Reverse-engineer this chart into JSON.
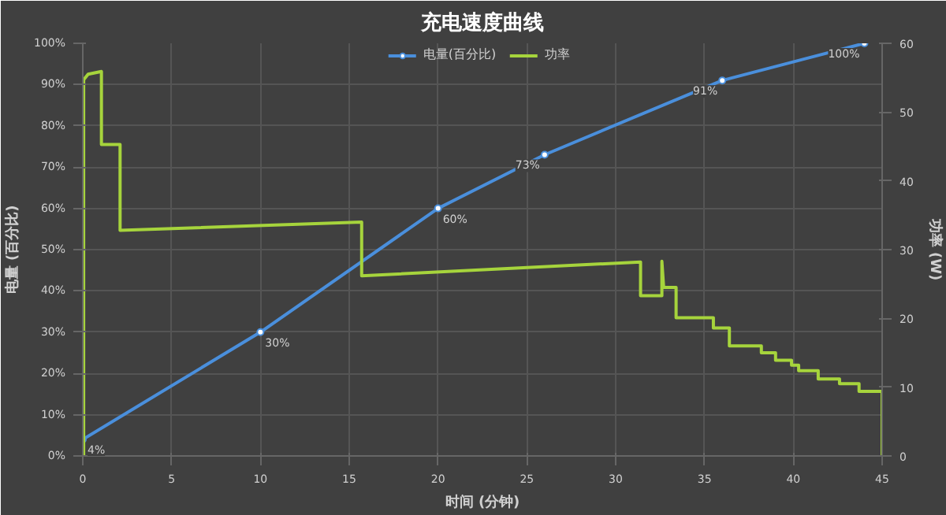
{
  "chart_data": {
    "type": "line",
    "title": "充电速度曲线",
    "xlabel": "时间 (分钟)",
    "ylabel": "电量 (百分比)",
    "y2label": "功率 (W)",
    "xlim": [
      0,
      45
    ],
    "xticks": [
      0,
      5,
      10,
      15,
      20,
      25,
      30,
      35,
      40,
      45
    ],
    "ylim": [
      0,
      100
    ],
    "yticks": [
      {
        "value": 0,
        "label": "0%"
      },
      {
        "value": 10,
        "label": "10%"
      },
      {
        "value": 20,
        "label": "20%"
      },
      {
        "value": 30,
        "label": "30%"
      },
      {
        "value": 40,
        "label": "40%"
      },
      {
        "value": 50,
        "label": "50%"
      },
      {
        "value": 60,
        "label": "60%"
      },
      {
        "value": 70,
        "label": "70%"
      },
      {
        "value": 80,
        "label": "80%"
      },
      {
        "value": 90,
        "label": "90%"
      },
      {
        "value": 100,
        "label": "100%"
      }
    ],
    "y2lim": [
      0,
      60
    ],
    "y2ticks": [
      0,
      10,
      20,
      30,
      40,
      50,
      60
    ],
    "grid": true,
    "legend": "top",
    "line_style": "solid",
    "series": [
      {
        "name": "电量(百分比)",
        "color": "#4a8fdc",
        "marker": "circle",
        "x": [
          0,
          10,
          20,
          26,
          36,
          44
        ],
        "values": [
          4,
          30,
          60,
          73,
          91,
          100
        ],
        "value_labels": [
          "4%",
          "30%",
          "60%",
          "73%",
          "91%",
          "100%"
        ]
      },
      {
        "name": "功率",
        "color": "#a6d43c",
        "marker": "none",
        "axis": "y2",
        "x": [
          0.05,
          0.05,
          0.3,
          1.05,
          1.05,
          2.1,
          2.1,
          15.7,
          15.7,
          31.4,
          31.4,
          32.6,
          32.6,
          32.7,
          33.4,
          33.4,
          35.5,
          35.5,
          36.4,
          36.4,
          38.2,
          38.2,
          39.0,
          39.0,
          39.9,
          39.9,
          40.3,
          40.3,
          41.4,
          41.4,
          42.6,
          42.6,
          43.7,
          43.7,
          45,
          45
        ],
        "values": [
          0,
          54.7,
          55.5,
          55.9,
          45.3,
          45.3,
          32.8,
          34.0,
          26.2,
          28.2,
          23.3,
          23.3,
          28.3,
          24.5,
          24.5,
          20.1,
          20.1,
          18.6,
          18.6,
          16.0,
          16.0,
          15.0,
          15.0,
          13.9,
          13.9,
          13.2,
          13.2,
          12.4,
          12.4,
          11.2,
          11.2,
          10.5,
          10.5,
          9.4,
          9.4,
          0
        ]
      }
    ]
  }
}
